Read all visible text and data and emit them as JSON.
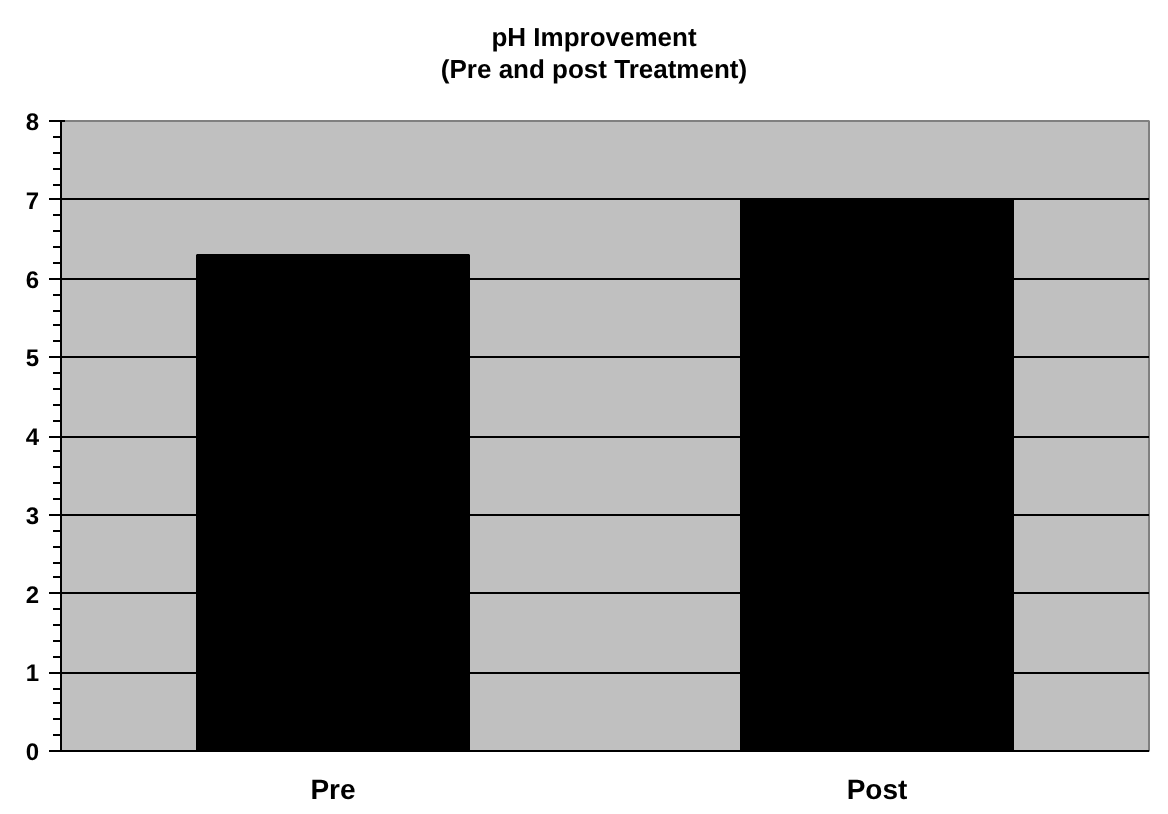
{
  "chart_data": {
    "type": "bar",
    "title": "pH Improvement\n(Pre and post Treatment)",
    "categories": [
      "Pre",
      "Post"
    ],
    "values": [
      6.3,
      7.0
    ],
    "color": "#000000",
    "ylim": [
      0,
      8
    ],
    "yticks": [
      0,
      1,
      2,
      3,
      4,
      5,
      6,
      7,
      8
    ],
    "grid": "y"
  }
}
